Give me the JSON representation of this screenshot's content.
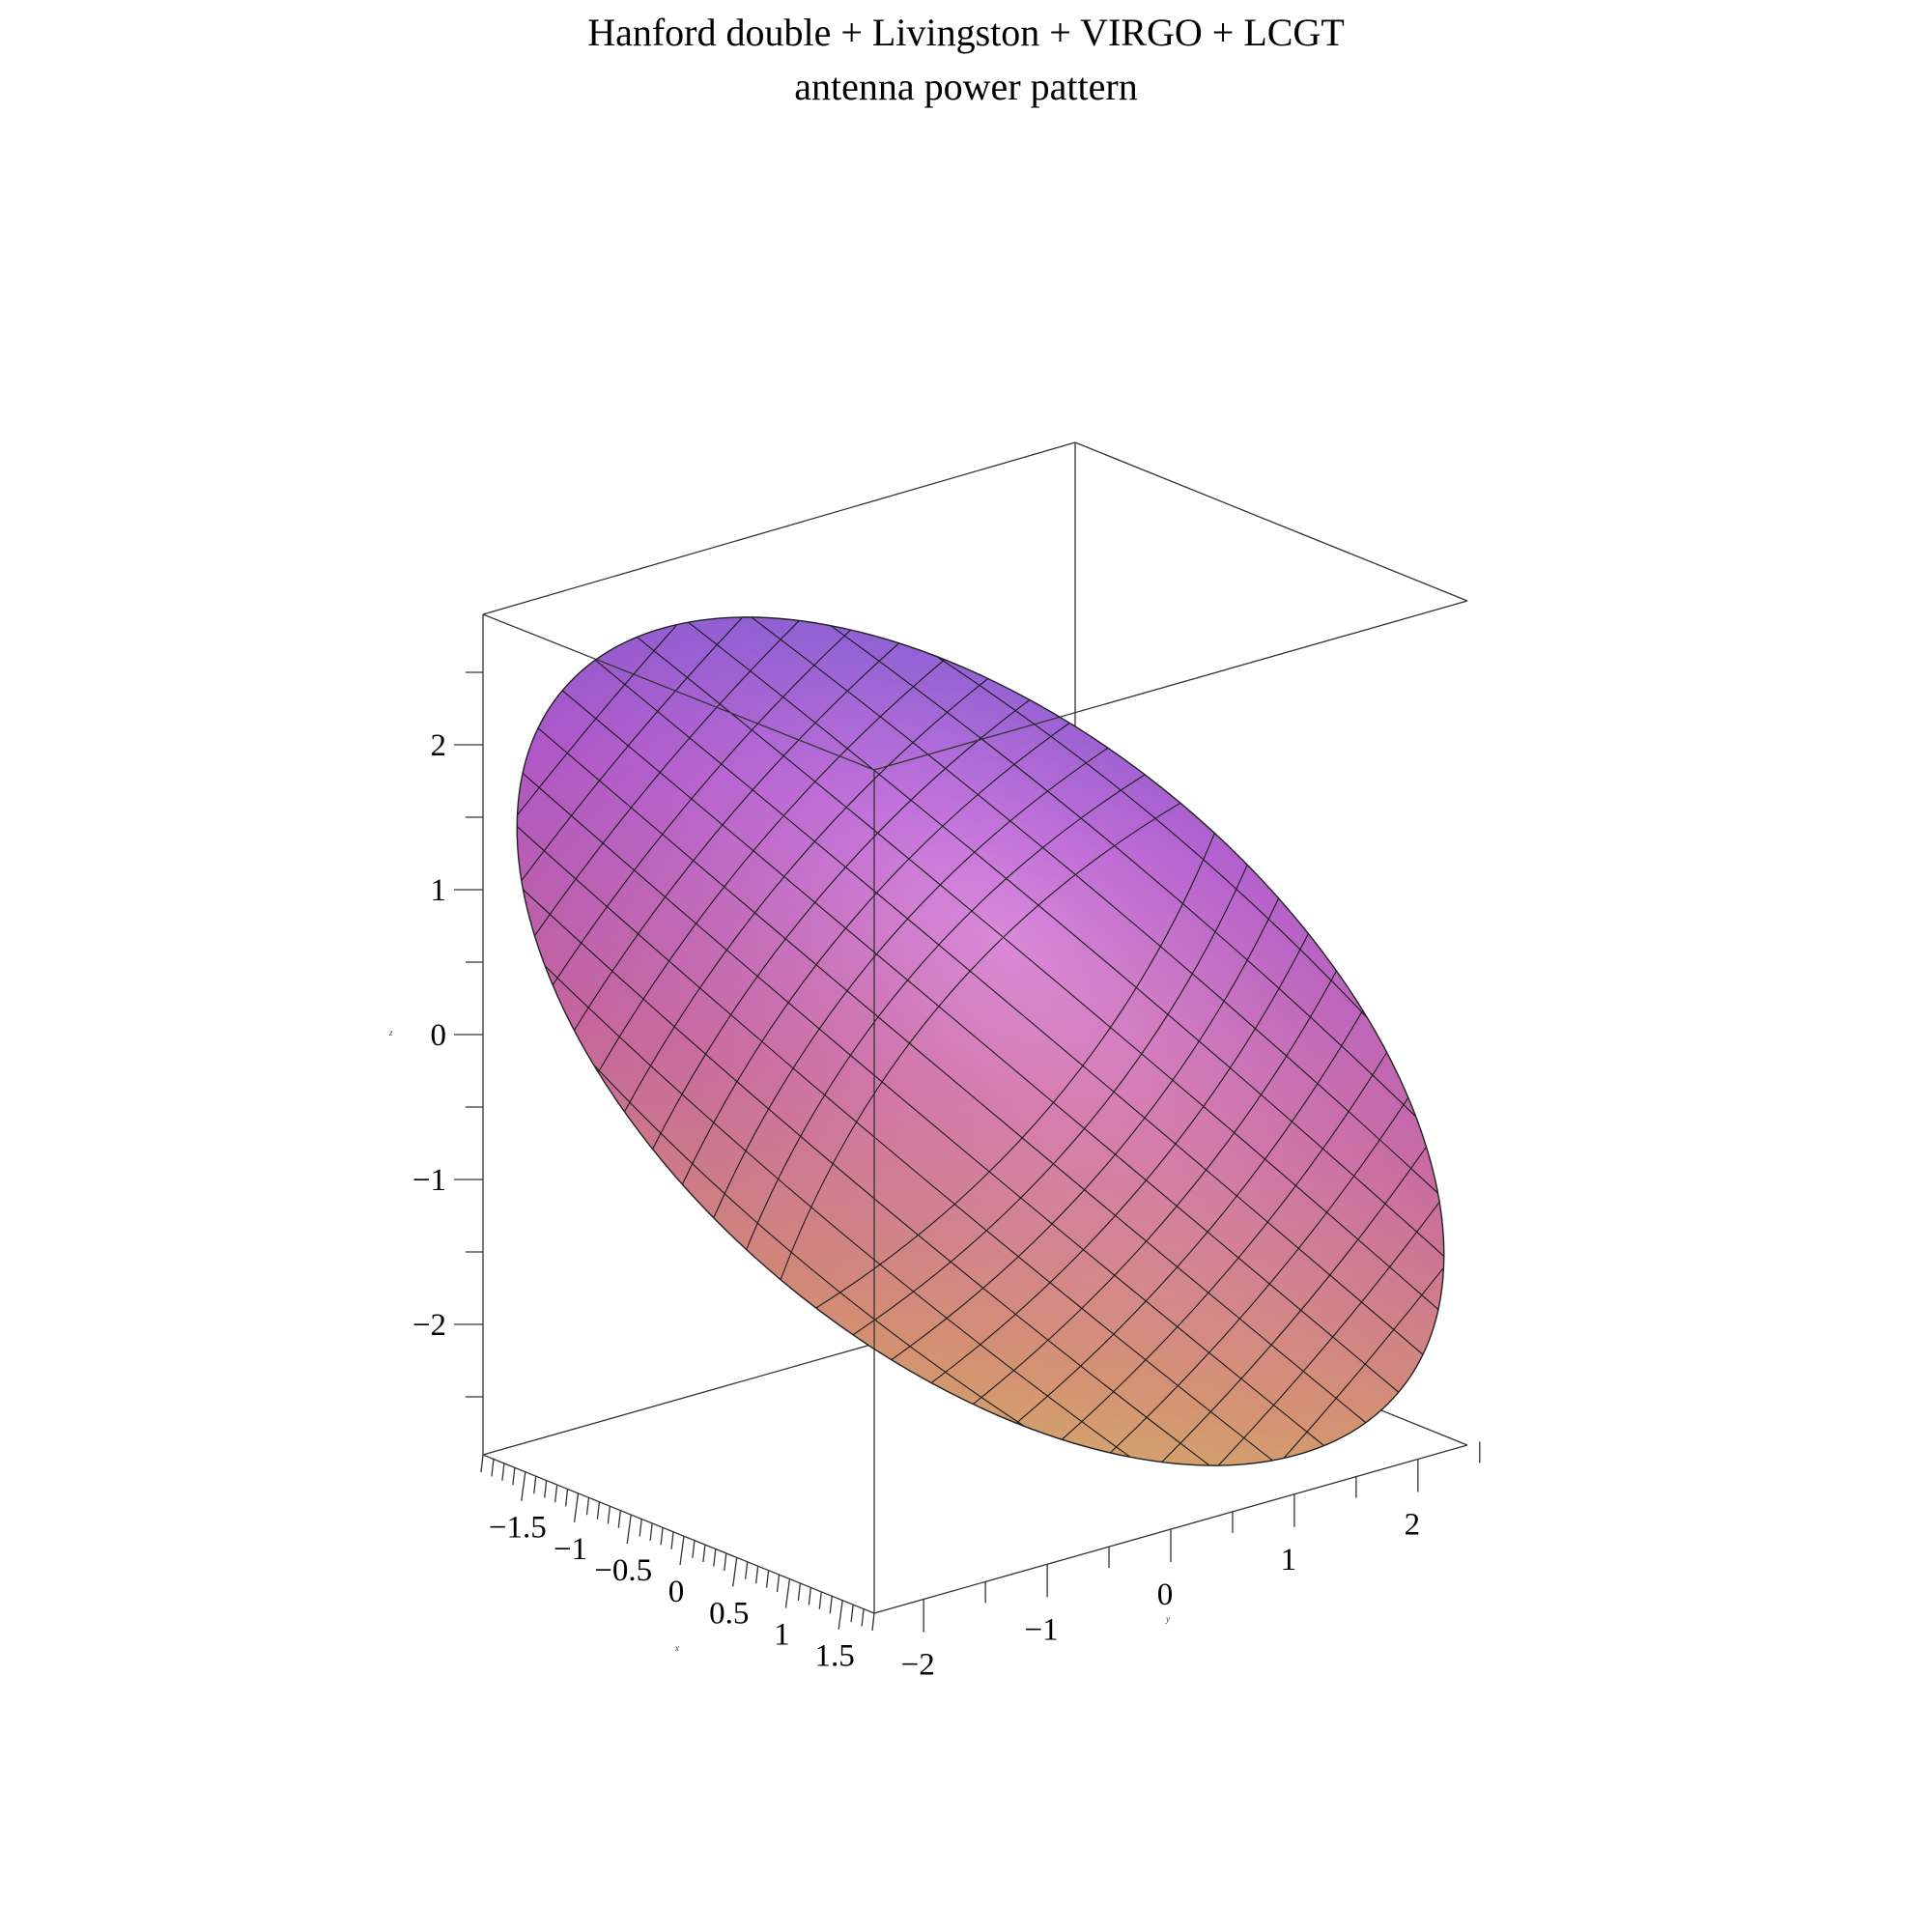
{
  "chart_data": {
    "type": "surface3d",
    "title_lines": [
      "Hanford double + Livingston + VIRGO + LCGT",
      "antenna power pattern"
    ],
    "axes": {
      "x": {
        "label": "x",
        "range": [
          -1.9,
          1.8
        ],
        "tick_labels": [
          "-1.5",
          "-1",
          "-0.5",
          "0",
          "0.5",
          "1",
          "1.5"
        ],
        "tick_values": [
          -1.5,
          -1,
          -0.5,
          0,
          0.5,
          1,
          1.5
        ]
      },
      "y": {
        "label": "y",
        "range": [
          -2.4,
          2.4
        ],
        "tick_labels": [
          "-2",
          "-1",
          "0",
          "1",
          "2"
        ],
        "tick_values": [
          -2,
          -1,
          0,
          1,
          2
        ]
      },
      "z": {
        "label": "z",
        "range": [
          -2.9,
          2.9
        ],
        "tick_labels": [
          "2",
          "1",
          "0",
          "-1",
          "-2"
        ],
        "tick_values": [
          2,
          1,
          0,
          -1,
          -2
        ]
      }
    },
    "surface": {
      "shape": "elongated lobe",
      "colormap": [
        "#6a5cf0",
        "#c05ae0",
        "#e070b0",
        "#f0a080",
        "#f0e070"
      ]
    },
    "box": true,
    "grid": false,
    "legend": "none"
  }
}
